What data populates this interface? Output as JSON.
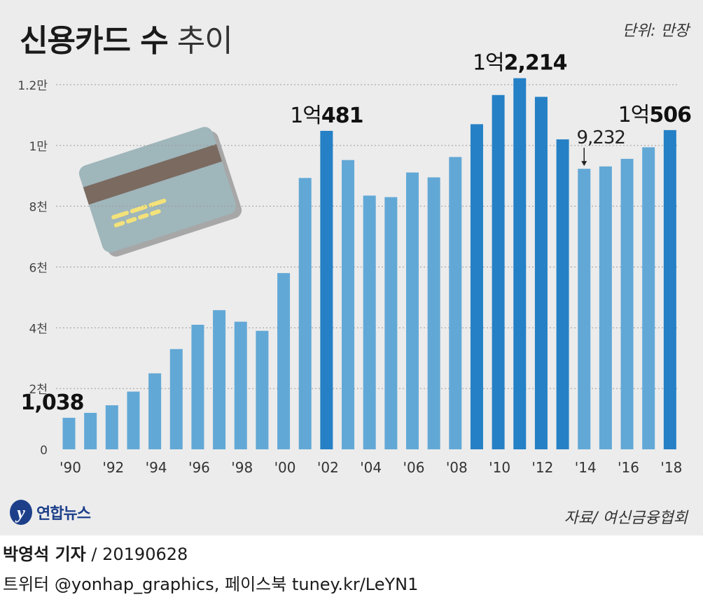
{
  "header": {
    "title_bold": "신용카드 수",
    "title_light": "추이",
    "unit": "단위: 만장"
  },
  "footer": {
    "source": "자료/ 여신금융협회",
    "logo_text": "연합뉴스",
    "reporter": "박영석 기자",
    "date": "/  20190628",
    "social": "트위터 @yonhap_graphics, 페이스북 tuney.kr/LeYN1"
  },
  "colors": {
    "bar_light": "#62a8d6",
    "bar_dark": "#2580c5",
    "background": "#ececec",
    "gridline": "#9a9a9a",
    "card_body": "#9fb6bb",
    "card_stripe": "#7b6a60",
    "card_dash": "#f3e27a"
  },
  "chart_data": {
    "type": "bar",
    "categories": [
      "1990",
      "1991",
      "1992",
      "1993",
      "1994",
      "1995",
      "1996",
      "1997",
      "1998",
      "1999",
      "2000",
      "2001",
      "2002",
      "2003",
      "2004",
      "2005",
      "2006",
      "2007",
      "2008",
      "2009",
      "2010",
      "2011",
      "2012",
      "2013",
      "2014",
      "2015",
      "2016",
      "2017",
      "2018"
    ],
    "values": [
      1038,
      1200,
      1450,
      1900,
      2500,
      3300,
      4100,
      4580,
      4200,
      3900,
      5800,
      8930,
      10481,
      9520,
      8350,
      8300,
      9110,
      8950,
      9620,
      10700,
      11660,
      12214,
      11600,
      10200,
      9232,
      9310,
      9560,
      9940,
      10506
    ],
    "highlight_categories": [
      "2002",
      "2009",
      "2010",
      "2011",
      "2012",
      "2013",
      "2018"
    ],
    "x_tick_labels": [
      "'90",
      "'92",
      "'94",
      "'96",
      "'98",
      "'00",
      "'02",
      "'04",
      "'06",
      "'08",
      "'10",
      "'12",
      "'14",
      "'16",
      "'18"
    ],
    "y_ticks": [
      0,
      2000,
      4000,
      6000,
      8000,
      10000,
      12000
    ],
    "y_tick_labels": [
      "0",
      "2천",
      "4천",
      "6천",
      "8천",
      "1만",
      "1.2만"
    ],
    "ylim": [
      0,
      12000
    ],
    "grid": true,
    "annotations": [
      {
        "category": "1990",
        "value": 1038,
        "prefix": "",
        "main": "1,038",
        "arrow": false
      },
      {
        "category": "2002",
        "value": 10481,
        "prefix": "1억",
        "main": "481",
        "arrow": false
      },
      {
        "category": "2011",
        "value": 12214,
        "prefix": "1억",
        "main": "2,214",
        "arrow": false
      },
      {
        "category": "2014",
        "value": 9232,
        "prefix": "",
        "main": "9,232",
        "arrow": true
      },
      {
        "category": "2018",
        "value": 10506,
        "prefix": "1억",
        "main": "506",
        "arrow": false
      }
    ]
  }
}
